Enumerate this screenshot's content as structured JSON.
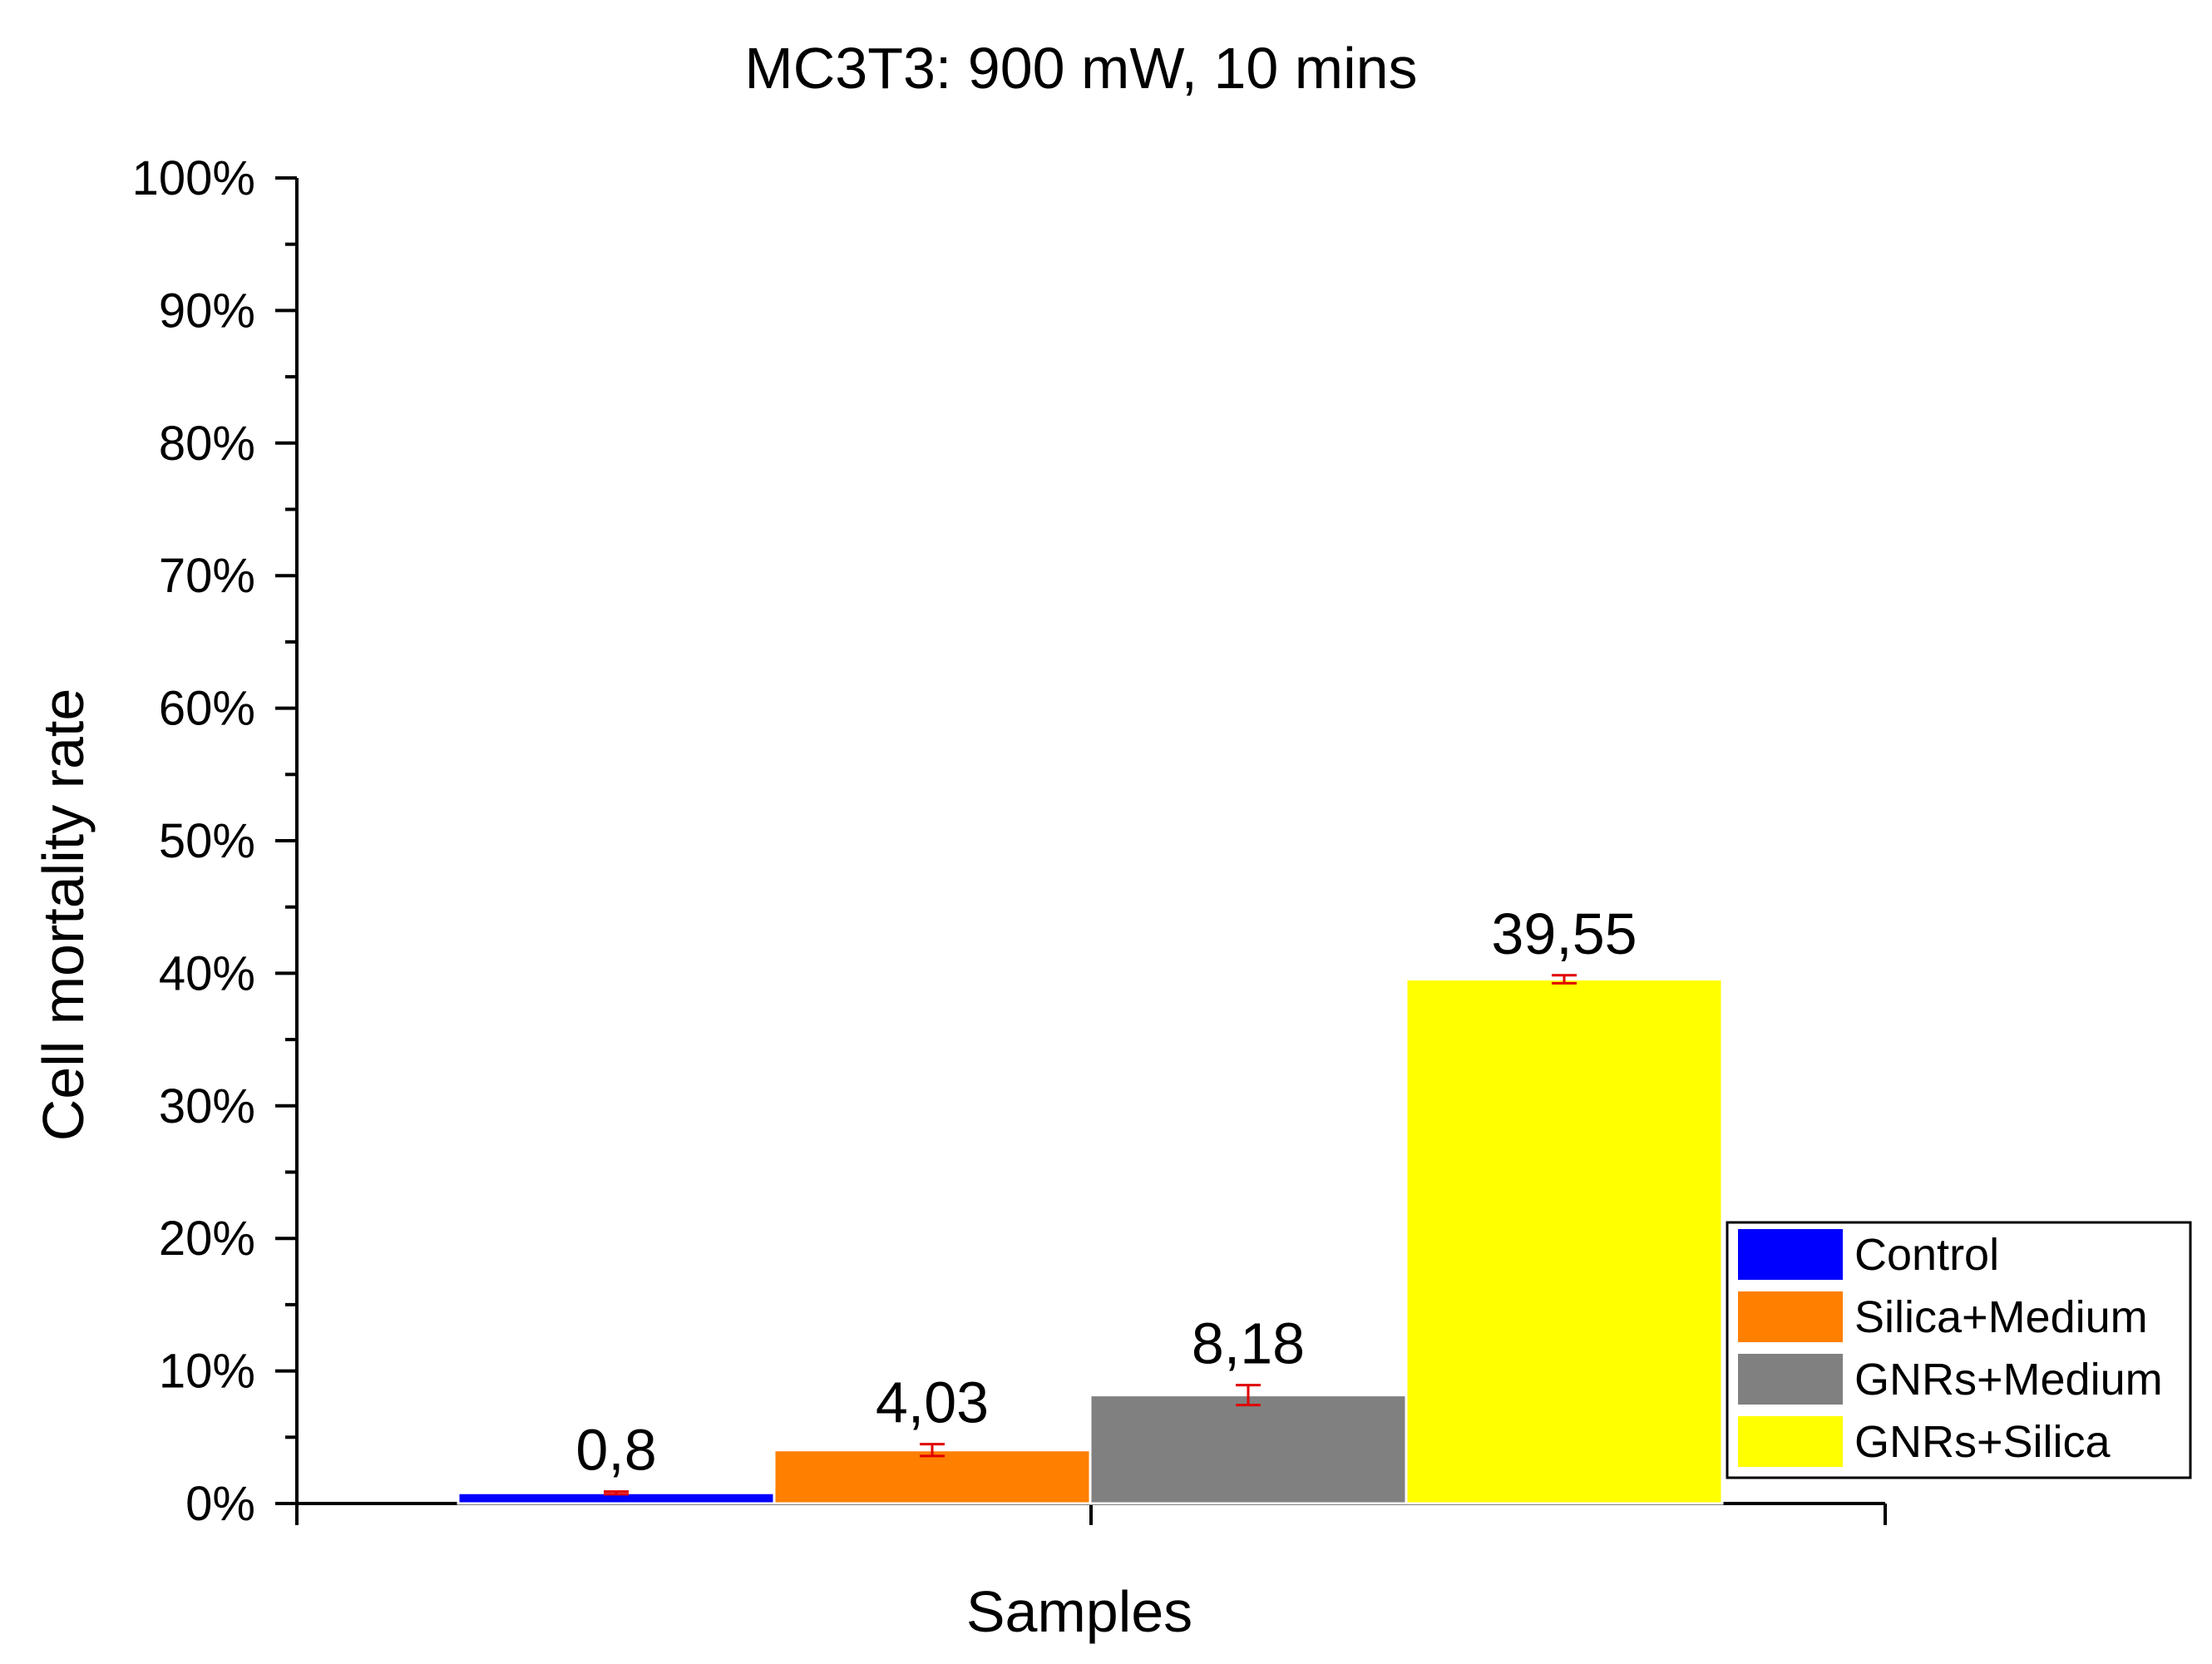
{
  "chart_data": {
    "type": "bar",
    "title": "MC3T3: 900 mW, 10 mins",
    "xlabel": "Samples",
    "ylabel": "Cell mortality rate",
    "ylim": [
      0,
      100
    ],
    "yticks": [
      "0%",
      "10%",
      "20%",
      "30%",
      "40%",
      "50%",
      "60%",
      "70%",
      "80%",
      "90%",
      "100%"
    ],
    "grid": false,
    "legend_position": "right",
    "series": [
      {
        "name": "Control",
        "value": 0.8,
        "label": "0,8",
        "error": 0.1,
        "color": "#0000ff"
      },
      {
        "name": "Silica+Medium",
        "value": 4.03,
        "label": "4,03",
        "error": 0.45,
        "color": "#ff7f00"
      },
      {
        "name": "GNRs+Medium",
        "value": 8.18,
        "label": "8,18",
        "error": 0.75,
        "color": "#808080"
      },
      {
        "name": "GNRs+Silica",
        "value": 39.55,
        "label": "39,55",
        "error": 0.3,
        "color": "#ffff00"
      }
    ],
    "errorbar_color": "#e00000"
  }
}
